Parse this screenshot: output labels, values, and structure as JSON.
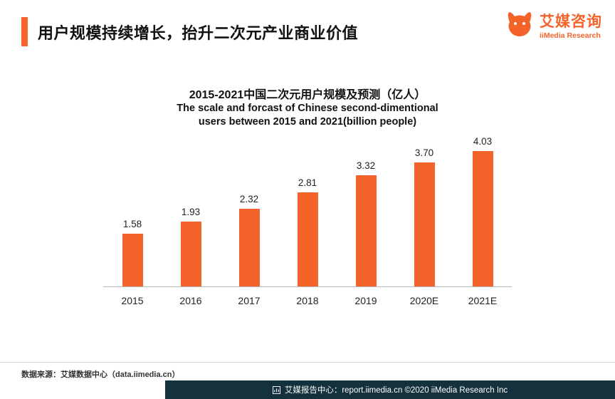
{
  "header": {
    "title": "用户规模持续增长，抬升二次元产业商业价值"
  },
  "logo": {
    "name": "艾媒咨询",
    "subtitle": "iiMedia Research"
  },
  "chart": {
    "title": "2015-2021中国二次元用户规模及预测（亿人）",
    "subtitle_line1": "The scale and forcast of Chinese second-dimentional",
    "subtitle_line2": "users between 2015 and 2021(billion people)"
  },
  "chart_data": {
    "type": "bar",
    "categories": [
      "2015",
      "2016",
      "2017",
      "2018",
      "2019",
      "2020E",
      "2021E"
    ],
    "values": [
      1.58,
      1.93,
      2.32,
      2.81,
      3.32,
      3.7,
      4.03
    ],
    "title": "2015-2021中国二次元用户规模及预测（亿人）",
    "subtitle": "The scale and forcast of Chinese second-dimentional users between 2015 and 2021(billion people)",
    "ylabel": "亿人",
    "ylim": [
      0,
      4.5
    ],
    "grid": false,
    "legend": false,
    "data_labels": true,
    "bar_color": "#F4632A"
  },
  "footer": {
    "source": "数据来源：艾媒数据中心（data.iimedia.cn）",
    "report": "艾媒报告中心：report.iimedia.cn ©2020  iiMedia Research Inc"
  },
  "colors": {
    "accent": "#F4632A",
    "bottom_bar": "#14323E"
  }
}
